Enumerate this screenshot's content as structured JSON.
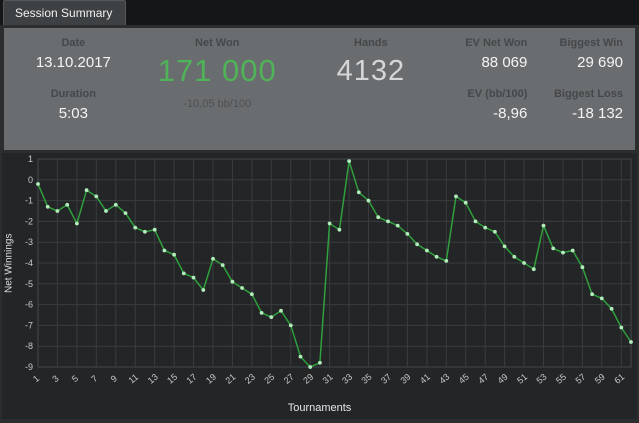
{
  "tab": {
    "label": "Session Summary"
  },
  "summary": {
    "date": {
      "label": "Date",
      "value": "13.10.2017"
    },
    "duration": {
      "label": "Duration",
      "value": "5:03"
    },
    "net_won": {
      "label": "Net Won",
      "value": "171 000",
      "sub": "-10,05 bb/100"
    },
    "hands": {
      "label": "Hands",
      "value": "4132"
    },
    "ev_net_won": {
      "label": "EV Net Won",
      "value": "88 069"
    },
    "biggest_win": {
      "label": "Biggest Win",
      "value": "29 690"
    },
    "ev_bb100": {
      "label": "EV (bb/100)",
      "value": "-8,96"
    },
    "biggest_loss": {
      "label": "Biggest Loss",
      "value": "-18 132"
    }
  },
  "colors": {
    "accent_green": "#4fb357",
    "chart_line_green": "#2fa03c",
    "chart_marker_green": "#b3ecbb",
    "panel_gray": "#6a6d6f",
    "chart_bg": "#232527"
  },
  "chart_data": {
    "type": "line",
    "title": "",
    "xlabel": "Tournaments",
    "ylabel": "Net Winnings",
    "ylim": [
      -9,
      1
    ],
    "x_tick_step": 2,
    "grid": true,
    "line_color": "#2fa03c",
    "marker_color": "#b3ecbb",
    "x": [
      1,
      2,
      3,
      4,
      5,
      6,
      7,
      8,
      9,
      10,
      11,
      12,
      13,
      14,
      15,
      16,
      17,
      18,
      19,
      20,
      21,
      22,
      23,
      24,
      25,
      26,
      27,
      28,
      29,
      30,
      31,
      32,
      33,
      34,
      35,
      36,
      37,
      38,
      39,
      40,
      41,
      42,
      43,
      44,
      45,
      46,
      47,
      48,
      49,
      50,
      51,
      52,
      53,
      54,
      55,
      56,
      57,
      58,
      59,
      60,
      61,
      62
    ],
    "values": [
      -0.2,
      -1.3,
      -1.5,
      -1.2,
      -2.1,
      -0.5,
      -0.8,
      -1.5,
      -1.2,
      -1.6,
      -2.3,
      -2.5,
      -2.4,
      -3.4,
      -3.6,
      -4.5,
      -4.7,
      -5.3,
      -3.8,
      -4.1,
      -4.9,
      -5.2,
      -5.5,
      -6.4,
      -6.6,
      -6.3,
      -7.0,
      -8.5,
      -9.0,
      -8.8,
      -2.1,
      -2.4,
      0.9,
      -0.6,
      -1.0,
      -1.8,
      -2.0,
      -2.2,
      -2.6,
      -3.1,
      -3.4,
      -3.7,
      -3.9,
      -0.8,
      -1.1,
      -2.0,
      -2.3,
      -2.5,
      -3.2,
      -3.7,
      -4.0,
      -4.3,
      -2.2,
      -3.3,
      -3.5,
      -3.4,
      -4.2,
      -5.5,
      -5.7,
      -6.2,
      -7.1,
      -7.8
    ]
  }
}
